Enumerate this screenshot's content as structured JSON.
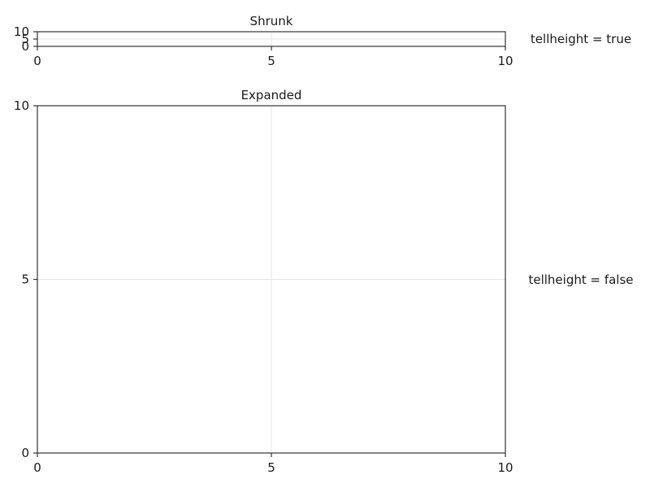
{
  "chart_data": [
    {
      "type": "line",
      "title": "Shrunk",
      "xlabel": "",
      "ylabel": "",
      "xlim": [
        0,
        10
      ],
      "ylim": [
        0,
        10
      ],
      "xticks": [
        0,
        5,
        10
      ],
      "yticks": [
        0,
        5,
        10
      ],
      "grid": true,
      "series": [],
      "side_label": "tellheight = true"
    },
    {
      "type": "line",
      "title": "Expanded",
      "xlabel": "",
      "ylabel": "",
      "xlim": [
        0,
        10
      ],
      "ylim": [
        0,
        10
      ],
      "xticks": [
        0,
        5,
        10
      ],
      "yticks": [
        0,
        5,
        10
      ],
      "grid": true,
      "series": [],
      "side_label": "tellheight = false"
    }
  ]
}
